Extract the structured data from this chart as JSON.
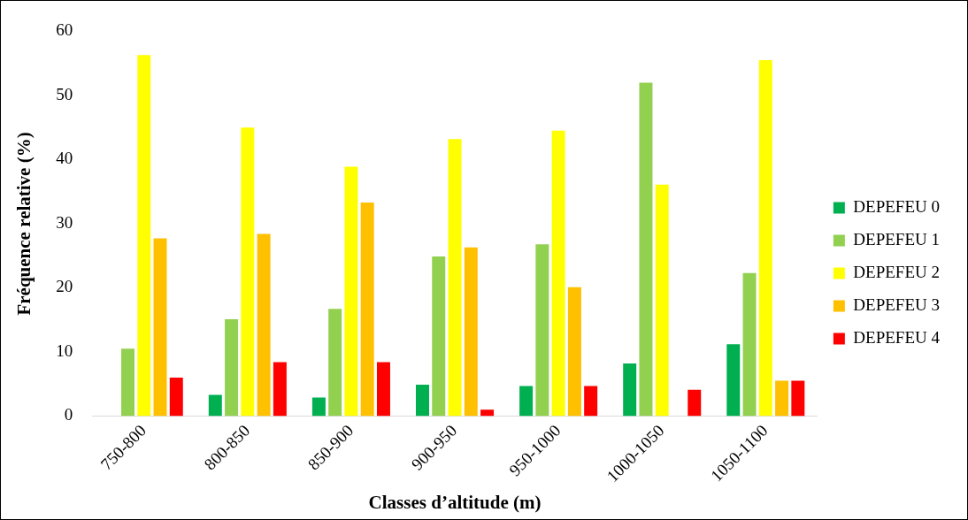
{
  "chart_data": {
    "type": "bar",
    "xlabel": "Classes d’altitude (m)",
    "ylabel": "Fréquence relative (%)",
    "categories": [
      "750-800",
      "800-850",
      "850-900",
      "900-950",
      "950-1000",
      "1000-1050",
      "1050-1100"
    ],
    "series": [
      {
        "name": "DEPEFEU 0",
        "color": "#00b050",
        "values": [
          0,
          3.3,
          2.9,
          4.9,
          4.7,
          8.2,
          11.2
        ]
      },
      {
        "name": "DEPEFEU 1",
        "color": "#92d050",
        "values": [
          10.5,
          15.1,
          16.7,
          24.9,
          26.8,
          52.0,
          22.3
        ]
      },
      {
        "name": "DEPEFEU 2",
        "color": "#ffff00",
        "values": [
          56.3,
          45.0,
          38.9,
          43.2,
          44.5,
          36.1,
          55.5
        ]
      },
      {
        "name": "DEPEFEU 3",
        "color": "#ffc000",
        "values": [
          27.7,
          28.4,
          33.3,
          26.3,
          20.1,
          0,
          5.5
        ]
      },
      {
        "name": "DEPEFEU 4",
        "color": "#ff0000",
        "values": [
          6.0,
          8.4,
          8.4,
          1.0,
          4.7,
          4.1,
          5.5
        ]
      }
    ],
    "ylim": [
      0,
      60
    ],
    "yticks": [
      0,
      10,
      20,
      30,
      40,
      50,
      60
    ],
    "grid": false,
    "legend": "right"
  }
}
